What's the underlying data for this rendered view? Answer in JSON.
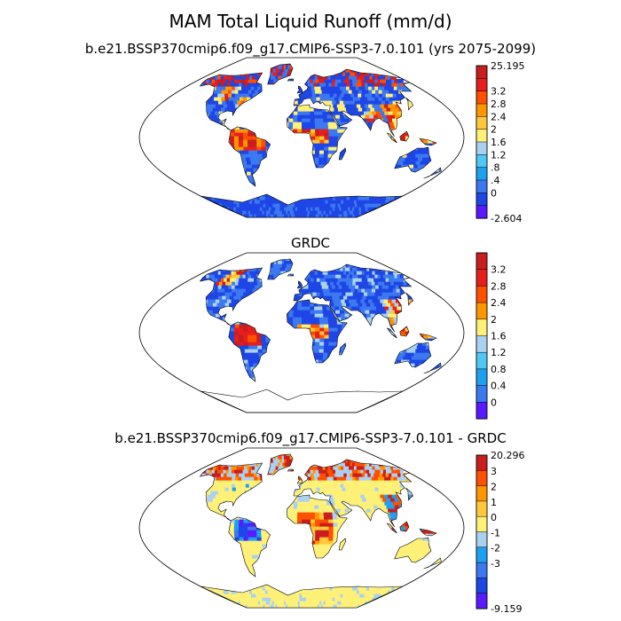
{
  "title": "MAM Total Liquid Runoff (mm/d)",
  "colors": {
    "scale1": [
      "#5a1aff",
      "#1e46e6",
      "#3c78f0",
      "#1ea0f0",
      "#50c8f5",
      "#aad2f0",
      "#fff078",
      "#ffc83c",
      "#ff9600",
      "#ff5000",
      "#e61e1e",
      "#c81e1e"
    ],
    "scale3": [
      "#5a1aff",
      "#1e46e6",
      "#3c78f0",
      "#1ea0f0",
      "#aad2f0",
      "#fff078",
      "#ffc83c",
      "#ff9600",
      "#ff5000",
      "#c81e1e"
    ],
    "land_outline": "#000000",
    "ocean": "#ffffff"
  },
  "panels": [
    {
      "title": "b.e21.BSSP370cmip6.f09_g17.CMIP6-SSP3-7.0.101 (yrs 2075-2099)",
      "colorbar": {
        "labels": [
          "25.195",
          "3.2",
          "2.8",
          "2.4",
          "2",
          "1.6",
          "1.2",
          ".8",
          ".4",
          "0",
          "-2.604"
        ]
      }
    },
    {
      "title": "GRDC",
      "colorbar": {
        "labels": [
          "3.2",
          "2.8",
          "2.4",
          "2",
          "1.6",
          "1.2",
          "0.8",
          "0.4",
          "0"
        ]
      }
    },
    {
      "title": "b.e21.BSSP370cmip6.f09_g17.CMIP6-SSP3-7.0.101 - GRDC",
      "colorbar": {
        "labels": [
          "20.296",
          "3",
          "2",
          "1",
          "0",
          "-1",
          "-2",
          "-3",
          "-9.159"
        ]
      }
    }
  ]
}
